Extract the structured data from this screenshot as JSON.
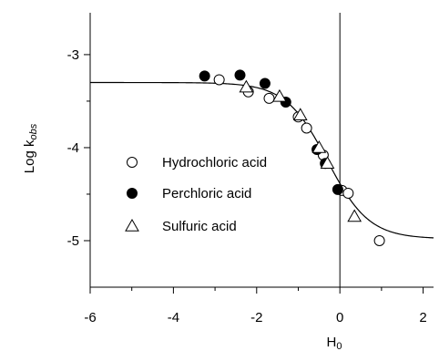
{
  "chart_data": {
    "type": "scatter",
    "title": "",
    "xlabel": {
      "main": "H",
      "sub": "0"
    },
    "ylabel": {
      "main": "Log k",
      "sub": "obs"
    },
    "xlim": [
      -6,
      2.25
    ],
    "ylim": [
      -5.5,
      -2.55
    ],
    "x_ticks": [
      -6,
      -4,
      -2,
      0,
      2
    ],
    "x_tick_labels": [
      "-6",
      "-4",
      "-2",
      "0",
      "2"
    ],
    "y_ticks": [
      -3,
      -4,
      -5
    ],
    "y_tick_labels": [
      "-3",
      "-4",
      "-5"
    ],
    "reference_lines": {
      "vertical_x": 0
    },
    "fit_curve": {
      "log_k_low_acidity": -3.3,
      "log_k_high_acidity": -4.98,
      "midpoint_h0": -0.3,
      "slope": 2.0
    },
    "legend": {
      "position": "left-center"
    },
    "series": [
      {
        "name": "Hydrochloric acid",
        "marker": "circle-open",
        "points": [
          [
            -2.9,
            -3.27
          ],
          [
            -2.2,
            -3.4
          ],
          [
            -1.7,
            -3.47
          ],
          [
            -1.0,
            -3.67
          ],
          [
            -0.8,
            -3.79
          ],
          [
            -0.4,
            -4.08
          ],
          [
            0.05,
            -4.46
          ],
          [
            0.2,
            -4.49
          ],
          [
            0.95,
            -5.0
          ]
        ]
      },
      {
        "name": "Perchloric acid",
        "marker": "circle-filled",
        "points": [
          [
            -3.25,
            -3.23
          ],
          [
            -2.4,
            -3.22
          ],
          [
            -1.8,
            -3.31
          ],
          [
            -1.3,
            -3.51
          ],
          [
            -0.55,
            -4.02
          ],
          [
            -0.35,
            -4.17
          ],
          [
            -0.05,
            -4.45
          ]
        ]
      },
      {
        "name": "Sulfuric acid",
        "marker": "triangle-open",
        "points": [
          [
            -2.25,
            -3.35
          ],
          [
            -1.45,
            -3.45
          ],
          [
            -0.95,
            -3.65
          ],
          [
            -0.5,
            -4.0
          ],
          [
            -0.3,
            -4.17
          ],
          [
            0.35,
            -4.74
          ]
        ]
      }
    ]
  }
}
